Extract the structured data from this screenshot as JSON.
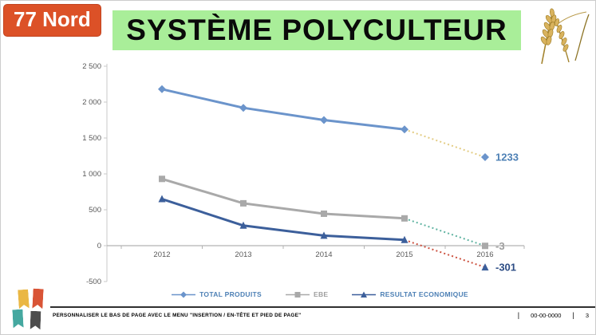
{
  "slide": {
    "badge": "77 Nord",
    "title": "SYSTÈME POLYCULTEUR",
    "colors": {
      "badge_bg": "#dc5127",
      "title_bg": "#a9ee99"
    },
    "icons": {
      "wheat": "wheat-ears-icon"
    },
    "footer": {
      "text": "PERSONNALISER LE BAS DE PAGE AVEC LE MENU \"INSERTION / EN-TÊTE ET PIED DE PAGE\"",
      "separator": "|",
      "date": "00-00-0000",
      "page_number": "3"
    }
  },
  "chart_data": {
    "type": "line",
    "x": [
      "2012",
      "2013",
      "2014",
      "2015",
      "2016"
    ],
    "series": [
      {
        "name": "TOTAL PRODUITS",
        "values": [
          2180,
          1920,
          1750,
          1620,
          1233
        ],
        "color": "#6b94cb",
        "projection_color": "#e3cc83",
        "marker": "diamond",
        "end_label": "1233",
        "end_label_color": "#4d80b5",
        "legend_color": "#4d80b5"
      },
      {
        "name": "EBE",
        "values": [
          930,
          590,
          445,
          380,
          -3
        ],
        "color": "#a9a9a9",
        "projection_color": "#5fb3a1",
        "marker": "square",
        "end_label": "-3",
        "end_label_color": "#9e9e9e",
        "legend_color": "#9e9e9e"
      },
      {
        "name": "RESULTAT ECONOMIQUE",
        "values": [
          650,
          280,
          140,
          80,
          -301
        ],
        "color": "#3c5f9b",
        "projection_color": "#cc5240",
        "marker": "triangle",
        "end_label": "-301",
        "end_label_color": "#2d4d85",
        "legend_color": "#4d80b5"
      }
    ],
    "solid_until_index": 3,
    "ylim": [
      -500,
      2500
    ],
    "ytick_step": 500,
    "ytick_labels": [
      "2 500",
      "2 000",
      "1 500",
      "1 000",
      "500",
      "0",
      "-500"
    ],
    "grid": false,
    "legend_position": "bottom",
    "title": "",
    "xlabel": "",
    "ylabel": ""
  }
}
